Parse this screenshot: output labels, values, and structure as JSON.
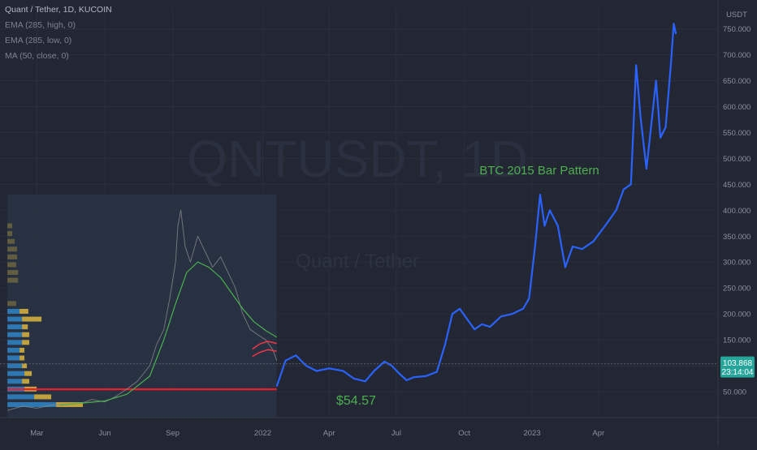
{
  "header": {
    "title": "Quant / Tether, 1D, KUCOIN",
    "indicators": [
      "EMA (285, high, 0)",
      "EMA (285, low, 0)",
      "MA (50, close, 0)"
    ]
  },
  "watermark": {
    "symbol": "QNTUSDT, 1D",
    "name": "Quant / Tether"
  },
  "annotations": {
    "pattern_label": "BTC 2015 Bar Pattern",
    "support_price": "$54.57"
  },
  "price_axis": {
    "currency": "USDT",
    "current_price": "103.868",
    "countdown": "23:14:04"
  },
  "colors": {
    "background": "#232733",
    "grid": "#2b2f3b",
    "history_panel": "#283445",
    "price_line": "#8c8c8c",
    "ma_line": "#4caf50",
    "ema_lines": "#f23645",
    "support_line": "#e8202d",
    "projection": "#2962ff",
    "label_green": "#4caf50",
    "badge_green": "#26a69a",
    "volume_profile_blue": "#2f7fbf",
    "volume_profile_gold": "#d1ae3e"
  },
  "chart_data": {
    "type": "line",
    "y_unit": "USDT",
    "y_range": [
      0,
      790
    ],
    "y_ticks": [
      50,
      100,
      150,
      200,
      250,
      300,
      350,
      400,
      450,
      500,
      550,
      600,
      650,
      700,
      750
    ],
    "y_tick_labels": [
      "50.000",
      "100.000",
      "150.000",
      "200.000",
      "250.000",
      "300.000",
      "350.000",
      "400.000",
      "450.000",
      "500.000",
      "550.000",
      "600.000",
      "650.000",
      "700.000",
      "750.000"
    ],
    "x_labels": [
      "Mar",
      "Jun",
      "Sep",
      "2022",
      "Apr",
      "Jul",
      "Oct",
      "2023",
      "Apr"
    ],
    "x_label_dates": [
      "2021-03-01",
      "2021-06-01",
      "2021-09-01",
      "2022-01-01",
      "2022-04-01",
      "2022-07-01",
      "2022-10-01",
      "2023-01-01",
      "2023-04-01"
    ],
    "x_range": [
      "2021-01-10",
      "2023-09-10"
    ],
    "history_window": [
      "2021-01-20",
      "2022-01-20"
    ],
    "current_price": 103.868,
    "support_level": 54.57,
    "series": [
      {
        "role": "history",
        "points": [
          [
            "2021-01-20",
            14
          ],
          [
            "2021-02-10",
            22
          ],
          [
            "2021-03-01",
            18
          ],
          [
            "2021-03-20",
            24
          ],
          [
            "2021-04-10",
            26
          ],
          [
            "2021-05-01",
            28
          ],
          [
            "2021-05-15",
            35
          ],
          [
            "2021-06-01",
            30
          ],
          [
            "2021-06-15",
            40
          ],
          [
            "2021-07-01",
            55
          ],
          [
            "2021-07-15",
            70
          ],
          [
            "2021-08-01",
            100
          ],
          [
            "2021-08-10",
            140
          ],
          [
            "2021-08-20",
            170
          ],
          [
            "2021-08-28",
            230
          ],
          [
            "2021-09-05",
            300
          ],
          [
            "2021-09-08",
            370
          ],
          [
            "2021-09-12",
            400
          ],
          [
            "2021-09-18",
            330
          ],
          [
            "2021-09-25",
            300
          ],
          [
            "2021-10-05",
            350
          ],
          [
            "2021-10-15",
            320
          ],
          [
            "2021-10-25",
            290
          ],
          [
            "2021-11-05",
            310
          ],
          [
            "2021-11-15",
            280
          ],
          [
            "2021-11-25",
            250
          ],
          [
            "2021-12-05",
            200
          ],
          [
            "2021-12-15",
            170
          ],
          [
            "2021-12-25",
            160
          ],
          [
            "2022-01-05",
            150
          ],
          [
            "2022-01-15",
            130
          ],
          [
            "2022-01-20",
            110
          ]
        ]
      },
      {
        "role": "ma_50",
        "points": [
          [
            "2021-04-01",
            24
          ],
          [
            "2021-05-01",
            28
          ],
          [
            "2021-06-01",
            32
          ],
          [
            "2021-07-01",
            45
          ],
          [
            "2021-08-01",
            80
          ],
          [
            "2021-08-20",
            150
          ],
          [
            "2021-09-05",
            220
          ],
          [
            "2021-09-20",
            280
          ],
          [
            "2021-10-05",
            300
          ],
          [
            "2021-10-20",
            290
          ],
          [
            "2021-11-05",
            270
          ],
          [
            "2021-11-20",
            240
          ],
          [
            "2021-12-05",
            210
          ],
          [
            "2021-12-20",
            185
          ],
          [
            "2022-01-05",
            168
          ],
          [
            "2022-01-20",
            155
          ]
        ]
      },
      {
        "role": "ema_high",
        "points": [
          [
            "2021-12-18",
            132
          ],
          [
            "2021-12-28",
            142
          ],
          [
            "2022-01-08",
            147
          ],
          [
            "2022-01-20",
            143
          ]
        ]
      },
      {
        "role": "ema_low",
        "points": [
          [
            "2021-12-18",
            118
          ],
          [
            "2021-12-28",
            126
          ],
          [
            "2022-01-08",
            131
          ],
          [
            "2022-01-20",
            128
          ]
        ]
      },
      {
        "role": "projection",
        "points": [
          [
            "2022-01-20",
            60
          ],
          [
            "2022-02-01",
            110
          ],
          [
            "2022-02-15",
            120
          ],
          [
            "2022-03-01",
            100
          ],
          [
            "2022-03-15",
            90
          ],
          [
            "2022-04-01",
            95
          ],
          [
            "2022-04-20",
            90
          ],
          [
            "2022-05-05",
            75
          ],
          [
            "2022-05-20",
            70
          ],
          [
            "2022-06-01",
            90
          ],
          [
            "2022-06-15",
            108
          ],
          [
            "2022-06-25",
            100
          ],
          [
            "2022-07-05",
            85
          ],
          [
            "2022-07-15",
            72
          ],
          [
            "2022-07-25",
            78
          ],
          [
            "2022-08-10",
            80
          ],
          [
            "2022-08-25",
            88
          ],
          [
            "2022-09-05",
            140
          ],
          [
            "2022-09-15",
            200
          ],
          [
            "2022-09-25",
            210
          ],
          [
            "2022-10-05",
            190
          ],
          [
            "2022-10-15",
            170
          ],
          [
            "2022-10-25",
            180
          ],
          [
            "2022-11-05",
            175
          ],
          [
            "2022-11-20",
            195
          ],
          [
            "2022-12-05",
            200
          ],
          [
            "2022-12-20",
            210
          ],
          [
            "2022-12-28",
            230
          ],
          [
            "2023-01-05",
            330
          ],
          [
            "2023-01-12",
            430
          ],
          [
            "2023-01-18",
            370
          ],
          [
            "2023-01-25",
            400
          ],
          [
            "2023-02-05",
            370
          ],
          [
            "2023-02-15",
            290
          ],
          [
            "2023-02-25",
            330
          ],
          [
            "2023-03-10",
            325
          ],
          [
            "2023-03-25",
            340
          ],
          [
            "2023-04-10",
            370
          ],
          [
            "2023-04-25",
            400
          ],
          [
            "2023-05-05",
            440
          ],
          [
            "2023-05-15",
            450
          ],
          [
            "2023-05-22",
            680
          ],
          [
            "2023-05-28",
            580
          ],
          [
            "2023-06-05",
            480
          ],
          [
            "2023-06-12",
            570
          ],
          [
            "2023-06-18",
            650
          ],
          [
            "2023-06-24",
            540
          ],
          [
            "2023-07-01",
            560
          ],
          [
            "2023-07-08",
            680
          ],
          [
            "2023-07-12",
            760
          ],
          [
            "2023-07-15",
            740
          ]
        ]
      }
    ],
    "volume_profile": {
      "price_bins": [
        25,
        40,
        55,
        70,
        85,
        100,
        115,
        130,
        145,
        160,
        175,
        190,
        205,
        220,
        235,
        250,
        265,
        280,
        295,
        310,
        325,
        340,
        355,
        370
      ],
      "buy": [
        1.0,
        0.55,
        0.35,
        0.3,
        0.35,
        0.3,
        0.25,
        0.25,
        0.3,
        0.3,
        0.3,
        0.3,
        0.25,
        0.0,
        0.0,
        0.0,
        0.0,
        0.0,
        0.0,
        0.0,
        0.0,
        0.0,
        0.0,
        0.0
      ],
      "sell": [
        0.55,
        0.35,
        0.25,
        0.15,
        0.15,
        0.1,
        0.1,
        0.1,
        0.15,
        0.15,
        0.12,
        0.4,
        0.18,
        0.18,
        0.0,
        0.0,
        0.22,
        0.22,
        0.18,
        0.2,
        0.2,
        0.15,
        0.1,
        0.1
      ]
    }
  }
}
